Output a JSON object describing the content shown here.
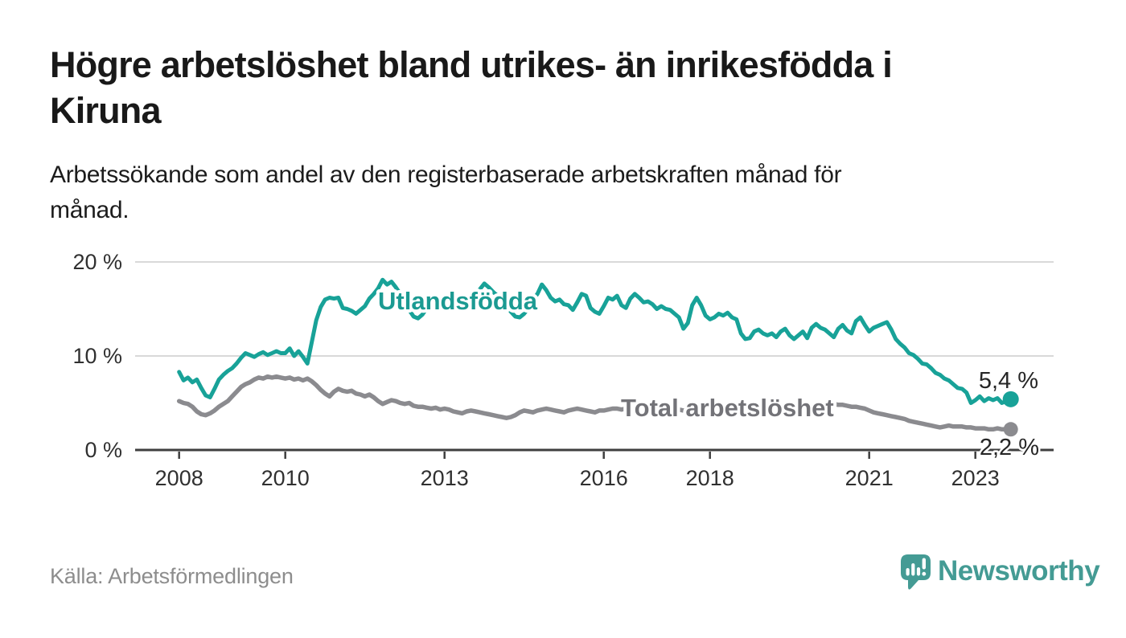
{
  "header": {
    "title_lines": [
      "Högre arbetslöshet bland utrikes- än inrikesfödda i",
      "Kiruna"
    ],
    "subtitle_lines": [
      "Arbetssökande som andel av den registerbaserade arbetskraften månad för",
      "månad."
    ]
  },
  "footer": {
    "source": "Källa: Arbetsförmedlingen",
    "brand": "Newsworthy",
    "brand_icon": "newsworthy-speech-bubble-bar-chart-icon"
  },
  "colors": {
    "teal_series": "#18a298",
    "gray_series": "#8b8b8f",
    "teal_label": "#1b9a92",
    "gray_label": "#737378",
    "grid": "#d9d9d9",
    "axis": "#3f3f3f",
    "tick_label": "#303030",
    "value_label": "#262626",
    "brand_teal": "#449b94",
    "title_text": "#191919",
    "source_text": "#8d8d8d"
  },
  "chart_data": {
    "type": "line",
    "unit": "%",
    "x_freq": "monthly",
    "x_start": "2008-01",
    "x_end": "2023-09",
    "ylim": [
      0,
      20
    ],
    "grid": "horizontal",
    "legend_position": "inline-labels",
    "y_ticks": [
      {
        "value": 0,
        "label": "0 %"
      },
      {
        "value": 10,
        "label": "10 %"
      },
      {
        "value": 20,
        "label": "20 %"
      }
    ],
    "x_ticks": [
      2008,
      2010,
      2013,
      2016,
      2018,
      2021,
      2023
    ],
    "series": [
      {
        "name": "Utlandsfödda",
        "color": "#18a298",
        "end_label": "5,4 %",
        "end_value": 5.4,
        "values": [
          8.3,
          7.4,
          7.7,
          7.2,
          7.5,
          6.6,
          5.8,
          5.6,
          6.5,
          7.5,
          8.0,
          8.4,
          8.7,
          9.2,
          9.8,
          10.3,
          10.1,
          9.9,
          10.2,
          10.4,
          10.1,
          10.3,
          10.5,
          10.3,
          10.3,
          10.8,
          10.0,
          10.5,
          9.9,
          9.2,
          11.5,
          13.8,
          15.2,
          16.0,
          16.2,
          16.1,
          16.2,
          15.1,
          15.0,
          14.8,
          14.5,
          14.9,
          15.3,
          16.1,
          16.6,
          17.2,
          18.1,
          17.6,
          17.9,
          17.3,
          16.6,
          15.8,
          14.9,
          14.2,
          14.0,
          14.4,
          15.1,
          15.7,
          16.1,
          15.9,
          15.7,
          16.1,
          15.9,
          15.6,
          15.9,
          16.2,
          16.0,
          16.5,
          17.1,
          17.7,
          17.3,
          16.8,
          16.4,
          15.8,
          15.3,
          14.7,
          14.2,
          14.1,
          14.5,
          15.1,
          16.0,
          16.6,
          17.6,
          17.0,
          16.2,
          15.8,
          16.0,
          15.5,
          15.4,
          14.9,
          15.7,
          16.6,
          16.4,
          15.1,
          14.7,
          14.5,
          15.3,
          16.2,
          16.0,
          16.4,
          15.4,
          15.1,
          16.1,
          16.6,
          16.2,
          15.7,
          15.8,
          15.5,
          15.0,
          15.3,
          15.0,
          14.9,
          14.5,
          14.1,
          12.9,
          13.5,
          15.4,
          16.2,
          15.4,
          14.3,
          13.9,
          14.1,
          14.5,
          14.3,
          14.6,
          14.1,
          13.9,
          12.4,
          11.8,
          11.9,
          12.6,
          12.8,
          12.4,
          12.2,
          12.4,
          12.0,
          12.6,
          12.9,
          12.2,
          11.8,
          12.2,
          12.6,
          11.9,
          13.0,
          13.4,
          13.0,
          12.8,
          12.4,
          12.0,
          12.9,
          13.3,
          12.7,
          12.4,
          13.7,
          14.1,
          13.3,
          12.6,
          13.0,
          13.2,
          13.4,
          13.6,
          12.8,
          11.8,
          11.3,
          10.9,
          10.3,
          10.1,
          9.7,
          9.2,
          9.1,
          8.7,
          8.2,
          8.0,
          7.6,
          7.4,
          7.0,
          6.6,
          6.5,
          6.1,
          5.0,
          5.3,
          5.7,
          5.2,
          5.5,
          5.3,
          5.5,
          5.0,
          5.2,
          5.4
        ]
      },
      {
        "name": "Total arbetslöshet",
        "color": "#8b8b8f",
        "end_label": "2,2 %",
        "end_value": 2.2,
        "values": [
          5.2,
          5.0,
          4.9,
          4.6,
          4.1,
          3.8,
          3.7,
          3.9,
          4.2,
          4.6,
          4.9,
          5.2,
          5.7,
          6.2,
          6.7,
          7.0,
          7.2,
          7.5,
          7.7,
          7.6,
          7.8,
          7.7,
          7.8,
          7.7,
          7.6,
          7.7,
          7.5,
          7.6,
          7.4,
          7.6,
          7.3,
          6.9,
          6.4,
          6.0,
          5.7,
          6.2,
          6.5,
          6.3,
          6.2,
          6.3,
          6.0,
          5.9,
          5.7,
          5.9,
          5.6,
          5.2,
          4.9,
          5.1,
          5.3,
          5.2,
          5.0,
          4.9,
          5.0,
          4.7,
          4.6,
          4.6,
          4.5,
          4.4,
          4.5,
          4.3,
          4.4,
          4.3,
          4.1,
          4.0,
          3.9,
          4.1,
          4.2,
          4.1,
          4.0,
          3.9,
          3.8,
          3.7,
          3.6,
          3.5,
          3.4,
          3.5,
          3.7,
          4.0,
          4.2,
          4.1,
          4.0,
          4.2,
          4.3,
          4.4,
          4.3,
          4.2,
          4.1,
          4.0,
          4.2,
          4.3,
          4.4,
          4.3,
          4.2,
          4.1,
          4.0,
          4.2,
          4.2,
          4.3,
          4.4,
          4.4,
          4.3,
          4.4,
          4.5,
          4.4,
          4.3,
          4.4,
          4.5,
          4.4,
          4.4,
          4.5,
          4.4,
          4.3,
          4.4,
          4.3,
          4.2,
          4.3,
          4.4,
          4.3,
          4.2,
          4.2,
          4.1,
          4.2,
          4.1,
          4.0,
          4.1,
          4.0,
          3.9,
          4.0,
          4.1,
          4.0,
          4.1,
          4.2,
          4.2,
          4.1,
          4.2,
          4.3,
          4.2,
          4.3,
          4.4,
          4.3,
          4.4,
          4.5,
          4.4,
          4.5,
          4.5,
          4.6,
          4.7,
          4.8,
          4.9,
          4.8,
          4.8,
          4.7,
          4.6,
          4.6,
          4.5,
          4.4,
          4.2,
          4.0,
          3.9,
          3.8,
          3.7,
          3.6,
          3.5,
          3.4,
          3.3,
          3.1,
          3.0,
          2.9,
          2.8,
          2.7,
          2.6,
          2.5,
          2.4,
          2.5,
          2.6,
          2.5,
          2.5,
          2.5,
          2.4,
          2.4,
          2.3,
          2.3,
          2.3,
          2.2,
          2.2,
          2.3,
          2.2,
          2.2,
          2.2
        ]
      }
    ]
  }
}
